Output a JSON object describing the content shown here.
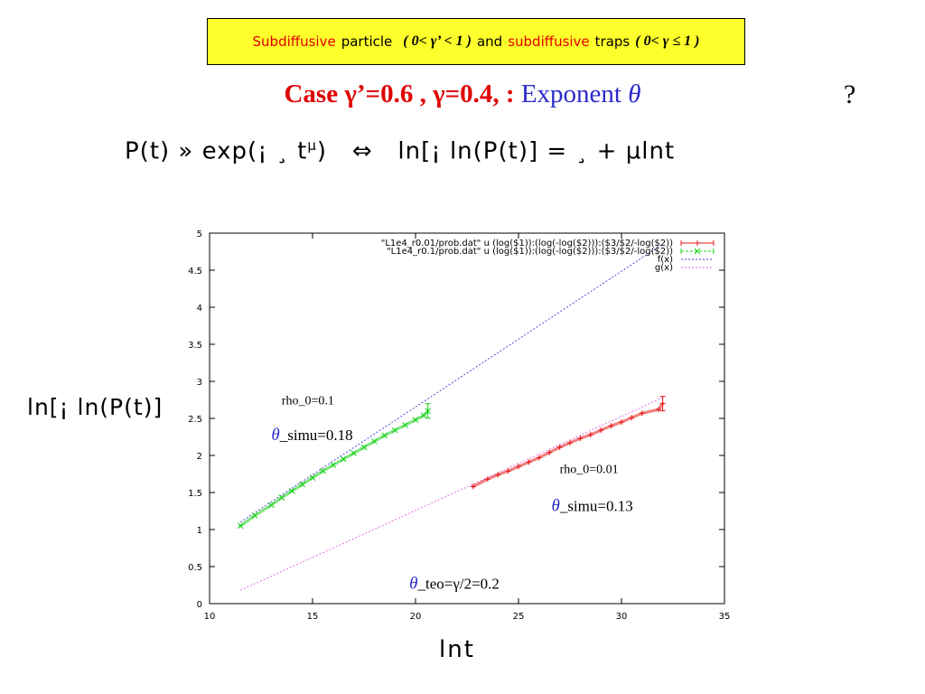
{
  "banner": {
    "w1": "Subdiffusive",
    "w2": "particle",
    "cond1": "( 0< γ’ < 1 )",
    "w3": "and",
    "w4": "subdiffusive",
    "w5": "traps",
    "cond2": "( 0< γ ≤ 1 )"
  },
  "case_title": {
    "part1": "Case  γ’=0.6 , γ=0.4, :",
    "part2": "Exponent",
    "theta": "θ"
  },
  "question_mark": "?",
  "formula": {
    "lhs": "P(t) » exp(¡ ¸ t",
    "sup": "µ",
    "close": ")",
    "equiv": "⇔",
    "rhs": "ln[¡ ln(P(t)] = ¸ + µlnt"
  },
  "chart_data": {
    "type": "scatter",
    "xlabel": "lnt",
    "ylabel": "ln[¡ ln(P(t)]",
    "xlim": [
      10,
      35
    ],
    "ylim": [
      0,
      5
    ],
    "xticks": [
      "10",
      "15",
      "20",
      "25",
      "30",
      "35"
    ],
    "yticks": [
      "0",
      "0.5",
      "1",
      "1.5",
      "2",
      "2.5",
      "3",
      "3.5",
      "4",
      "4.5",
      "5"
    ],
    "grid": false,
    "legend_position": "top-right",
    "colors": {
      "red": "#e81818",
      "green": "#18d018",
      "blue": "#3d3dd6",
      "magenta": "#e060e0"
    },
    "series": [
      {
        "name": "\"L1e4_r0.01/prob.dat\" u (log($1)):(log(-log($2))):($3/$2/-log($2))",
        "style": "errorbars",
        "color": "#e81818",
        "x": [
          22.8,
          23.5,
          24.0,
          24.5,
          25.0,
          25.5,
          26.0,
          26.5,
          27.0,
          27.5,
          28.0,
          28.5,
          29.0,
          29.5,
          30.0,
          30.5,
          31.0,
          31.8,
          32.0
        ],
        "y": [
          1.58,
          1.68,
          1.74,
          1.79,
          1.85,
          1.91,
          1.97,
          2.04,
          2.11,
          2.17,
          2.23,
          2.28,
          2.34,
          2.4,
          2.45,
          2.51,
          2.57,
          2.62,
          2.7
        ]
      },
      {
        "name": "\"L1e4_r0.1/prob.dat\" u (log($1)):(log(-log($2))):($3/$2/-log($2))",
        "style": "errorbars",
        "color": "#18d018",
        "x": [
          11.5,
          12.2,
          13.0,
          13.5,
          14.0,
          14.5,
          15.0,
          15.5,
          16.0,
          16.5,
          17.0,
          17.5,
          18.0,
          18.5,
          19.0,
          19.5,
          20.0,
          20.4,
          20.6
        ],
        "y": [
          1.05,
          1.19,
          1.33,
          1.43,
          1.52,
          1.61,
          1.7,
          1.79,
          1.87,
          1.95,
          2.03,
          2.11,
          2.19,
          2.27,
          2.34,
          2.41,
          2.48,
          2.54,
          2.6
        ]
      },
      {
        "name": "f(x)",
        "style": "dotted-line",
        "color": "#3d3dd6",
        "x": [
          11.5,
          32.0
        ],
        "y": [
          1.1,
          4.85
        ]
      },
      {
        "name": "g(x)",
        "style": "dotted-line",
        "color": "#e060e0",
        "x": [
          11.5,
          32.0
        ],
        "y": [
          0.18,
          2.78
        ]
      }
    ],
    "annotations": [
      {
        "text": "rho_0=0.1",
        "x": 13.5,
        "y": 2.69
      },
      {
        "theta": "θ",
        "text": "_simu=0.18",
        "x": 13.0,
        "y": 2.21
      },
      {
        "text": "rho_0=0.01",
        "x": 27.0,
        "y": 1.76
      },
      {
        "theta": "θ",
        "text": "_simu=0.13",
        "x": 26.6,
        "y": 1.25
      },
      {
        "theta": "θ",
        "text": "_teo=γ/2=0.2",
        "x": 19.7,
        "y": 0.2
      }
    ]
  }
}
